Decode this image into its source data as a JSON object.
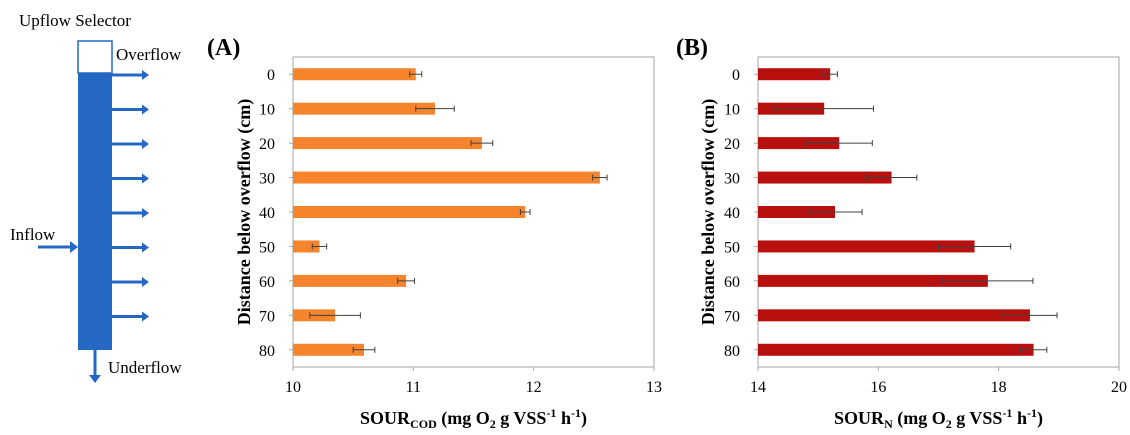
{
  "diagram": {
    "title": "Upflow Selector",
    "labels": {
      "overflow": "Overflow",
      "inflow": "Inflow",
      "underflow": "Underflow"
    },
    "outlet_count": 8,
    "colors": {
      "column": "#2468c4",
      "outline": "#2468c4"
    }
  },
  "chart_data": [
    {
      "panel": "(A)",
      "type": "bar",
      "orientation": "horizontal",
      "categories": [
        "0",
        "10",
        "20",
        "30",
        "40",
        "50",
        "60",
        "70",
        "80"
      ],
      "values": [
        11.02,
        11.18,
        11.57,
        12.55,
        11.93,
        10.22,
        10.94,
        10.35,
        10.59
      ],
      "errors": [
        0.05,
        0.16,
        0.09,
        0.06,
        0.04,
        0.06,
        0.07,
        0.21,
        0.09
      ],
      "ylabel": "Distance below overflow (cm)",
      "xlabel": {
        "main": "SOUR",
        "sub": "COD",
        "rest": " (mg O",
        "sub2": "2",
        "rest2": " g VSS",
        "sup": "-1",
        "rest3": " h",
        "sup2": "-1",
        "end": ")"
      },
      "xlim": [
        10,
        13
      ],
      "xticks": [
        10,
        11,
        12,
        13
      ],
      "grid": false,
      "color": "#f5842c"
    },
    {
      "panel": "(B)",
      "type": "bar",
      "orientation": "horizontal",
      "categories": [
        "0",
        "10",
        "20",
        "30",
        "40",
        "50",
        "60",
        "70",
        "80"
      ],
      "values": [
        15.2,
        15.1,
        15.35,
        16.22,
        15.28,
        17.6,
        17.82,
        18.52,
        18.58
      ],
      "errors": [
        0.12,
        0.82,
        0.55,
        0.42,
        0.45,
        0.6,
        0.75,
        0.45,
        0.22
      ],
      "ylabel": "Distance below overflow (cm)",
      "xlabel": {
        "main": "SOUR",
        "sub": "N",
        "rest": " (mg O",
        "sub2": "2",
        "rest2": " g VSS",
        "sup": "-1",
        "rest3": " h",
        "sup2": "-1",
        "end": ")"
      },
      "xlim": [
        14,
        20
      ],
      "xticks": [
        14,
        16,
        18,
        20
      ],
      "grid": false,
      "color": "#b80f0f"
    }
  ]
}
